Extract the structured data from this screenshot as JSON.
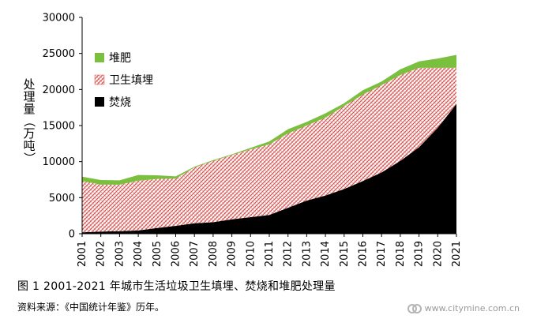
{
  "chart_data": {
    "type": "area",
    "stacked": true,
    "x": [
      "2001",
      "2002",
      "2003",
      "2004",
      "2005",
      "2006",
      "2007",
      "2008",
      "2009",
      "2010",
      "2011",
      "2012",
      "2013",
      "2014",
      "2015",
      "2016",
      "2017",
      "2018",
      "2019",
      "2020",
      "2021"
    ],
    "series": [
      {
        "name": "焚烧",
        "color": "#000000",
        "values": [
          200,
          300,
          350,
          450,
          800,
          1100,
          1450,
          1600,
          2000,
          2300,
          2600,
          3600,
          4600,
          5300,
          6200,
          7300,
          8500,
          10100,
          12000,
          14700,
          18000
        ]
      },
      {
        "name": "卫生填埋",
        "color": "#d9534f",
        "values": [
          7100,
          6500,
          6450,
          6900,
          6800,
          6550,
          7750,
          8500,
          8900,
          9400,
          9800,
          10300,
          10400,
          10800,
          11500,
          12000,
          12100,
          11900,
          11000,
          8300,
          5000
        ]
      },
      {
        "name": "堆肥",
        "color": "#7bbf3f",
        "values": [
          600,
          650,
          600,
          800,
          500,
          300,
          100,
          100,
          100,
          200,
          400,
          600,
          500,
          600,
          400,
          600,
          500,
          800,
          900,
          1300,
          1800
        ]
      }
    ],
    "ylabel": "处理量（万吨）",
    "ylim": [
      0,
      30000
    ],
    "yticks": [
      "0",
      "5000",
      "10000",
      "15000",
      "20000",
      "25000",
      "30000"
    ],
    "legend_position": "top-left",
    "grid": false
  },
  "caption": "图 1  2001-2021 年城市生活垃圾卫生填埋、焚烧和堆肥处理量",
  "source": "资料来源：《中国统计年鉴》历年。",
  "watermark": "www.citymine.com.cn"
}
